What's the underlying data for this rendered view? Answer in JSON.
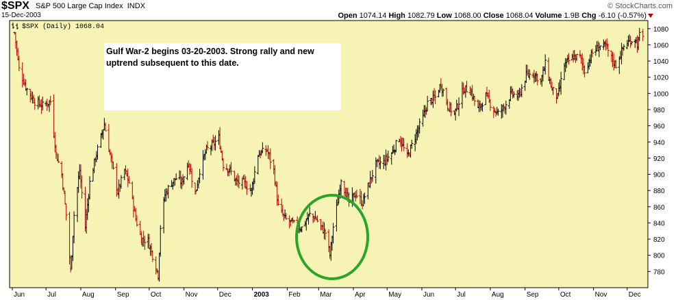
{
  "header": {
    "symbol": "$SPX",
    "name": "S&P 500 Large Cap Index",
    "exchange": "INDX",
    "date": "15-Dec-2003",
    "open_label": "Open",
    "open": "1074.14",
    "high_label": "High",
    "high": "1082.79",
    "low_label": "Low",
    "low": "1068.00",
    "close_label": "Close",
    "close": "1068.04",
    "volume_label": "Volume",
    "volume": "1.9B",
    "chg_label": "Chg",
    "chg": "-6.10 (-0.57%)",
    "watermark": "© StockCharts.com"
  },
  "annotation": {
    "text_line1": "Gulf War-2 begins 03-20-2003.    Strong rally and new",
    "text_line2": "uptrend subsequent to this date."
  },
  "colors": {
    "plot_background": "#f7f3b4",
    "up_bar": "#000000",
    "down_bar": "#b00000",
    "circle": "#2aa52a",
    "annotation_box": "#ffffff"
  },
  "chart_data": {
    "type": "ohlc",
    "title": "$SPX (Daily) 1068.04",
    "series_label": "$SPX (Daily) 1068.04",
    "ylim": [
      760,
      1090
    ],
    "y_ticks": [
      780,
      800,
      820,
      840,
      860,
      880,
      900,
      920,
      940,
      960,
      980,
      1000,
      1020,
      1040,
      1060,
      1080
    ],
    "x_ticks": [
      "Jun",
      "Jul",
      "Aug",
      "Sep",
      "Oct",
      "Nov",
      "Dec",
      "2003",
      "Feb",
      "Mar",
      "Apr",
      "May",
      "Jun",
      "Jul",
      "Aug",
      "Sep",
      "Oct",
      "Nov",
      "Dec"
    ],
    "x_tick_bold": "2003",
    "grid": false,
    "close_path": [
      [
        "2002-06-03",
        1075
      ],
      [
        "2002-06-07",
        1030
      ],
      [
        "2002-06-14",
        1005
      ],
      [
        "2002-06-21",
        990
      ],
      [
        "2002-06-28",
        985
      ],
      [
        "2002-07-05",
        990
      ],
      [
        "2002-07-10",
        925
      ],
      [
        "2002-07-15",
        900
      ],
      [
        "2002-07-19",
        850
      ],
      [
        "2002-07-23",
        780
      ],
      [
        "2002-07-26",
        850
      ],
      [
        "2002-07-31",
        905
      ],
      [
        "2002-08-05",
        835
      ],
      [
        "2002-08-09",
        890
      ],
      [
        "2002-08-14",
        920
      ],
      [
        "2002-08-22",
        962
      ],
      [
        "2002-08-28",
        918
      ],
      [
        "2002-09-03",
        878
      ],
      [
        "2002-09-09",
        905
      ],
      [
        "2002-09-13",
        890
      ],
      [
        "2002-09-19",
        845
      ],
      [
        "2002-09-24",
        820
      ],
      [
        "2002-09-30",
        818
      ],
      [
        "2002-10-04",
        800
      ],
      [
        "2002-10-09",
        776
      ],
      [
        "2002-10-11",
        835
      ],
      [
        "2002-10-15",
        875
      ],
      [
        "2002-10-21",
        890
      ],
      [
        "2002-10-25",
        895
      ],
      [
        "2002-10-30",
        890
      ],
      [
        "2002-11-05",
        915
      ],
      [
        "2002-11-11",
        875
      ],
      [
        "2002-11-15",
        905
      ],
      [
        "2002-11-21",
        930
      ],
      [
        "2002-11-27",
        937
      ],
      [
        "2002-12-02",
        945
      ],
      [
        "2002-12-06",
        912
      ],
      [
        "2002-12-12",
        905
      ],
      [
        "2002-12-18",
        890
      ],
      [
        "2002-12-24",
        890
      ],
      [
        "2002-12-31",
        880
      ],
      [
        "2003-01-06",
        925
      ],
      [
        "2003-01-14",
        930
      ],
      [
        "2003-01-20",
        905
      ],
      [
        "2003-01-24",
        860
      ],
      [
        "2003-01-30",
        845
      ],
      [
        "2003-02-05",
        840
      ],
      [
        "2003-02-11",
        835
      ],
      [
        "2003-02-14",
        834
      ],
      [
        "2003-02-21",
        850
      ],
      [
        "2003-02-27",
        845
      ],
      [
        "2003-03-03",
        835
      ],
      [
        "2003-03-07",
        828
      ],
      [
        "2003-03-11",
        800
      ],
      [
        "2003-03-14",
        835
      ],
      [
        "2003-03-18",
        866
      ],
      [
        "2003-03-21",
        895
      ],
      [
        "2003-03-28",
        865
      ],
      [
        "2003-04-03",
        876
      ],
      [
        "2003-04-09",
        865
      ],
      [
        "2003-04-14",
        885
      ],
      [
        "2003-04-21",
        912
      ],
      [
        "2003-04-28",
        915
      ],
      [
        "2003-05-05",
        926
      ],
      [
        "2003-05-12",
        945
      ],
      [
        "2003-05-19",
        921
      ],
      [
        "2003-05-27",
        950
      ],
      [
        "2003-06-02",
        970
      ],
      [
        "2003-06-06",
        988
      ],
      [
        "2003-06-13",
        995
      ],
      [
        "2003-06-18",
        1012
      ],
      [
        "2003-06-24",
        985
      ],
      [
        "2003-06-30",
        975
      ],
      [
        "2003-07-03",
        986
      ],
      [
        "2003-07-08",
        1005
      ],
      [
        "2003-07-14",
        1005
      ],
      [
        "2003-07-21",
        980
      ],
      [
        "2003-07-28",
        997
      ],
      [
        "2003-08-04",
        980
      ],
      [
        "2003-08-08",
        975
      ],
      [
        "2003-08-14",
        985
      ],
      [
        "2003-08-20",
        1000
      ],
      [
        "2003-08-26",
        995
      ],
      [
        "2003-09-02",
        1022
      ],
      [
        "2003-09-09",
        1025
      ],
      [
        "2003-09-15",
        1015
      ],
      [
        "2003-09-19",
        1036
      ],
      [
        "2003-09-25",
        1005
      ],
      [
        "2003-09-30",
        995
      ],
      [
        "2003-10-06",
        1035
      ],
      [
        "2003-10-14",
        1045
      ],
      [
        "2003-10-20",
        1045
      ],
      [
        "2003-10-24",
        1028
      ],
      [
        "2003-10-31",
        1050
      ],
      [
        "2003-11-06",
        1058
      ],
      [
        "2003-11-12",
        1058
      ],
      [
        "2003-11-17",
        1043
      ],
      [
        "2003-11-21",
        1035
      ],
      [
        "2003-11-28",
        1058
      ],
      [
        "2003-12-03",
        1064
      ],
      [
        "2003-12-08",
        1068
      ],
      [
        "2003-12-10",
        1060
      ],
      [
        "2003-12-12",
        1071
      ],
      [
        "2003-12-15",
        1068
      ]
    ]
  }
}
